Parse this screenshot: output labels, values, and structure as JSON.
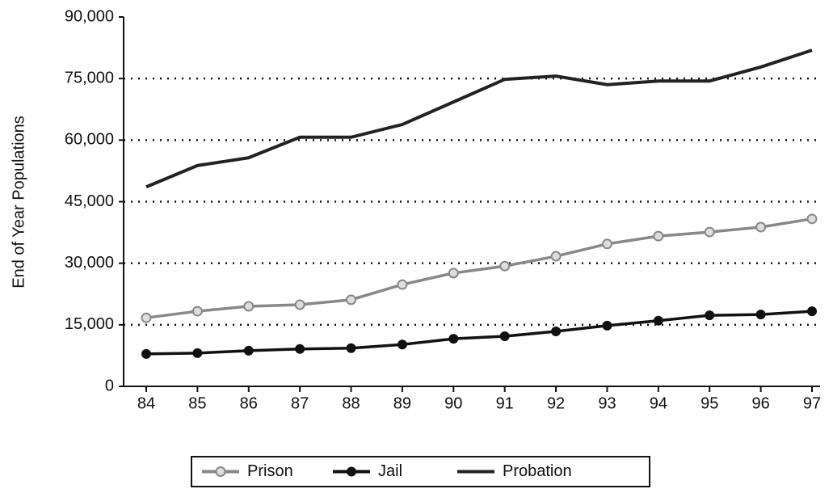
{
  "chart_data": {
    "type": "line",
    "y_label": "End of Year Populations",
    "categories": [
      "84",
      "85",
      "86",
      "87",
      "88",
      "89",
      "90",
      "91",
      "92",
      "93",
      "94",
      "95",
      "96",
      "97"
    ],
    "series": [
      {
        "name": "Prison",
        "color": "#888888",
        "marker": "circle-open",
        "values": [
          16700,
          18300,
          19500,
          19900,
          21100,
          24800,
          27600,
          29300,
          31700,
          34700,
          36600,
          37600,
          38800,
          40800
        ]
      },
      {
        "name": "Jail",
        "color": "#111111",
        "marker": "circle",
        "values": [
          7900,
          8100,
          8700,
          9100,
          9300,
          10200,
          11600,
          12200,
          13400,
          14800,
          16000,
          17300,
          17500,
          18300
        ]
      },
      {
        "name": "Probation",
        "color": "#222222",
        "marker": "none",
        "values": [
          48600,
          53800,
          55700,
          60700,
          60700,
          63800,
          69300,
          74800,
          75600,
          73500,
          74400,
          74400,
          77800,
          81900
        ]
      }
    ],
    "ylim": [
      0,
      90000
    ],
    "yticks": [
      0,
      {
        "value": 15000,
        "label": "15,000"
      },
      {
        "value": 30000,
        "label": "30,000"
      },
      {
        "value": 45000,
        "label": "45,000"
      },
      {
        "value": 60000,
        "label": "60,000"
      },
      {
        "value": 75000,
        "label": "75,000"
      },
      {
        "value": 90000,
        "label": "90,000"
      }
    ],
    "grid": true,
    "legend": "bottom"
  }
}
